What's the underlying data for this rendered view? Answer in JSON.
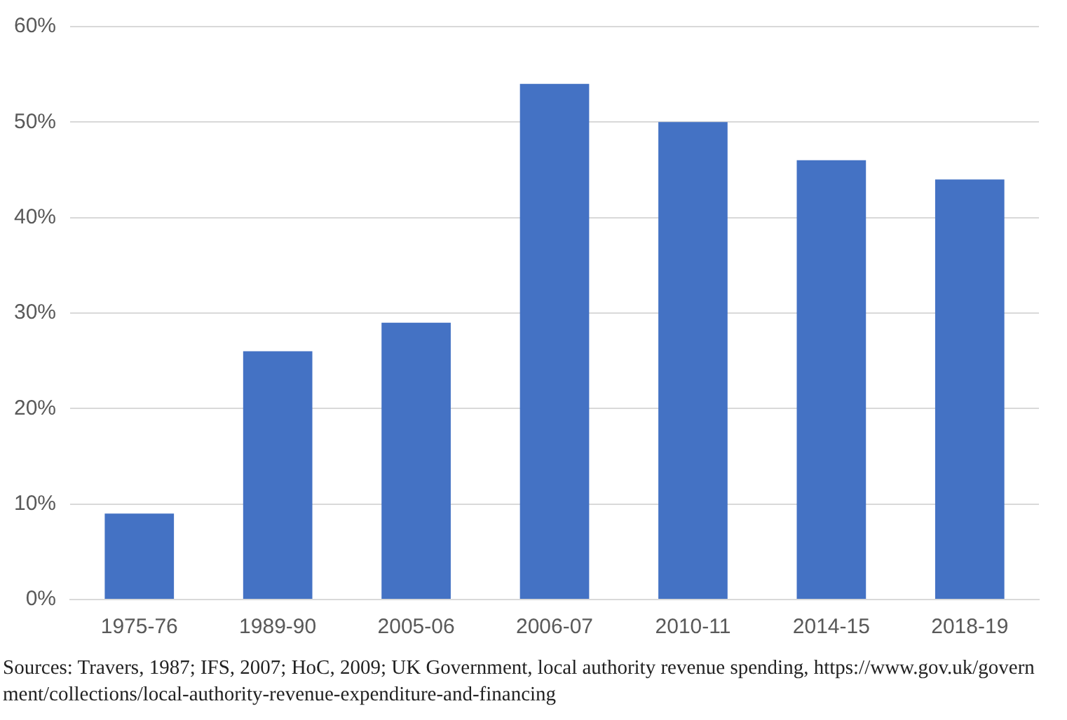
{
  "chart_data": {
    "type": "bar",
    "categories": [
      "1975-76",
      "1989-90",
      "2005-06",
      "2006-07",
      "2010-11",
      "2014-15",
      "2018-19"
    ],
    "values": [
      9,
      26,
      29,
      54,
      50,
      46,
      44
    ],
    "color": "#4472c4",
    "ylim": [
      0,
      60
    ],
    "yticks": [
      {
        "value": 0,
        "label": "0%"
      },
      {
        "value": 10,
        "label": "10%"
      },
      {
        "value": 20,
        "label": "20%"
      },
      {
        "value": 30,
        "label": "30%"
      },
      {
        "value": 40,
        "label": "40%"
      },
      {
        "value": 50,
        "label": "50%"
      },
      {
        "value": 60,
        "label": "60%"
      }
    ],
    "grid": "y",
    "legend": false,
    "annotations": [
      "Sources:  Travers, 1987; IFS, 2007; HoC, 2009; UK Government, local authority revenue spending, https://www.gov.uk/government/collections/local-authority-revenue-expenditure-and-financing"
    ]
  }
}
